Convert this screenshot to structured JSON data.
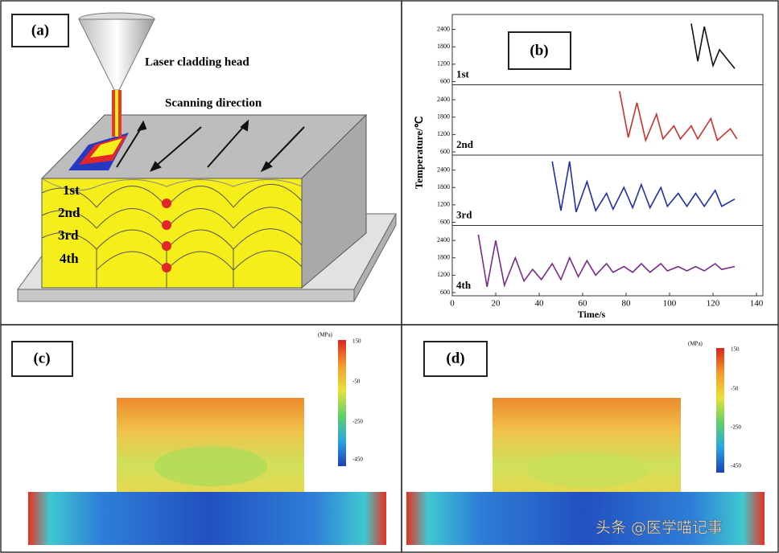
{
  "panel_a": {
    "label": "(a)",
    "head": "Laser cladding head",
    "scan": "Scanning direction",
    "layers": [
      "1st",
      "2nd",
      "3rd",
      "4th"
    ]
  },
  "panel_b": {
    "label": "(b)"
  },
  "chart_data": [
    {
      "type": "line",
      "label": "1st",
      "ylabel": "Temperature/℃",
      "color": "#111111",
      "ylim": [
        600,
        2750
      ],
      "yticks": [
        600,
        1200,
        1800,
        2400
      ],
      "x": [
        110,
        113,
        116,
        120,
        123,
        130
      ],
      "values": [
        2600,
        1300,
        2500,
        1150,
        1700,
        1050
      ]
    },
    {
      "type": "line",
      "label": "2nd",
      "color": "#d0302a",
      "ylim": [
        600,
        2750
      ],
      "yticks": [
        600,
        1200,
        1800,
        2400
      ],
      "x": [
        77,
        81,
        85,
        89,
        94,
        97,
        102,
        105,
        110,
        113,
        119,
        122,
        128,
        131
      ],
      "values": [
        2700,
        1100,
        2300,
        1000,
        1900,
        1050,
        1500,
        1050,
        1500,
        1050,
        1750,
        1000,
        1400,
        1050
      ]
    },
    {
      "type": "line",
      "label": "3rd",
      "color": "#2030a8",
      "ylim": [
        600,
        2750
      ],
      "yticks": [
        600,
        1200,
        1800,
        2400
      ],
      "x": [
        46,
        50,
        54,
        57,
        62,
        66,
        71,
        74,
        79,
        83,
        87,
        91,
        96,
        99,
        104,
        108,
        112,
        116,
        121,
        124,
        130
      ],
      "values": [
        2700,
        1000,
        2700,
        950,
        2000,
        1000,
        1600,
        1050,
        1800,
        1100,
        1900,
        1100,
        1800,
        1150,
        1600,
        1150,
        1600,
        1150,
        1700,
        1150,
        1400
      ]
    },
    {
      "type": "line",
      "label": "4th",
      "color": "#7a2a8e",
      "ylim": [
        600,
        2750
      ],
      "yticks": [
        600,
        1200,
        1800,
        2400
      ],
      "xlabel": "Time/s",
      "xlim": [
        0,
        140
      ],
      "xticks": [
        0,
        20,
        40,
        60,
        80,
        100,
        120,
        140
      ],
      "x": [
        12,
        16,
        20,
        24,
        29,
        33,
        37,
        41,
        46,
        50,
        54,
        58,
        62,
        66,
        71,
        74,
        79,
        83,
        87,
        91,
        96,
        99,
        104,
        108,
        112,
        116,
        121,
        124,
        130
      ],
      "values": [
        2600,
        800,
        2400,
        850,
        1800,
        1000,
        1400,
        1050,
        1600,
        1050,
        1800,
        1150,
        1700,
        1200,
        1600,
        1300,
        1500,
        1300,
        1600,
        1300,
        1600,
        1350,
        1500,
        1350,
        1500,
        1350,
        1600,
        1400,
        1500
      ]
    }
  ],
  "panel_c": {
    "label": "(c)",
    "unit": "(MPa)",
    "ticks": [
      "150",
      "-50",
      "-250",
      "-450"
    ]
  },
  "panel_d": {
    "label": "(d)",
    "unit": "(MPa)",
    "ticks": [
      "150",
      "-50",
      "-250",
      "-450"
    ]
  },
  "watermark": "头条 @医学喵记事"
}
